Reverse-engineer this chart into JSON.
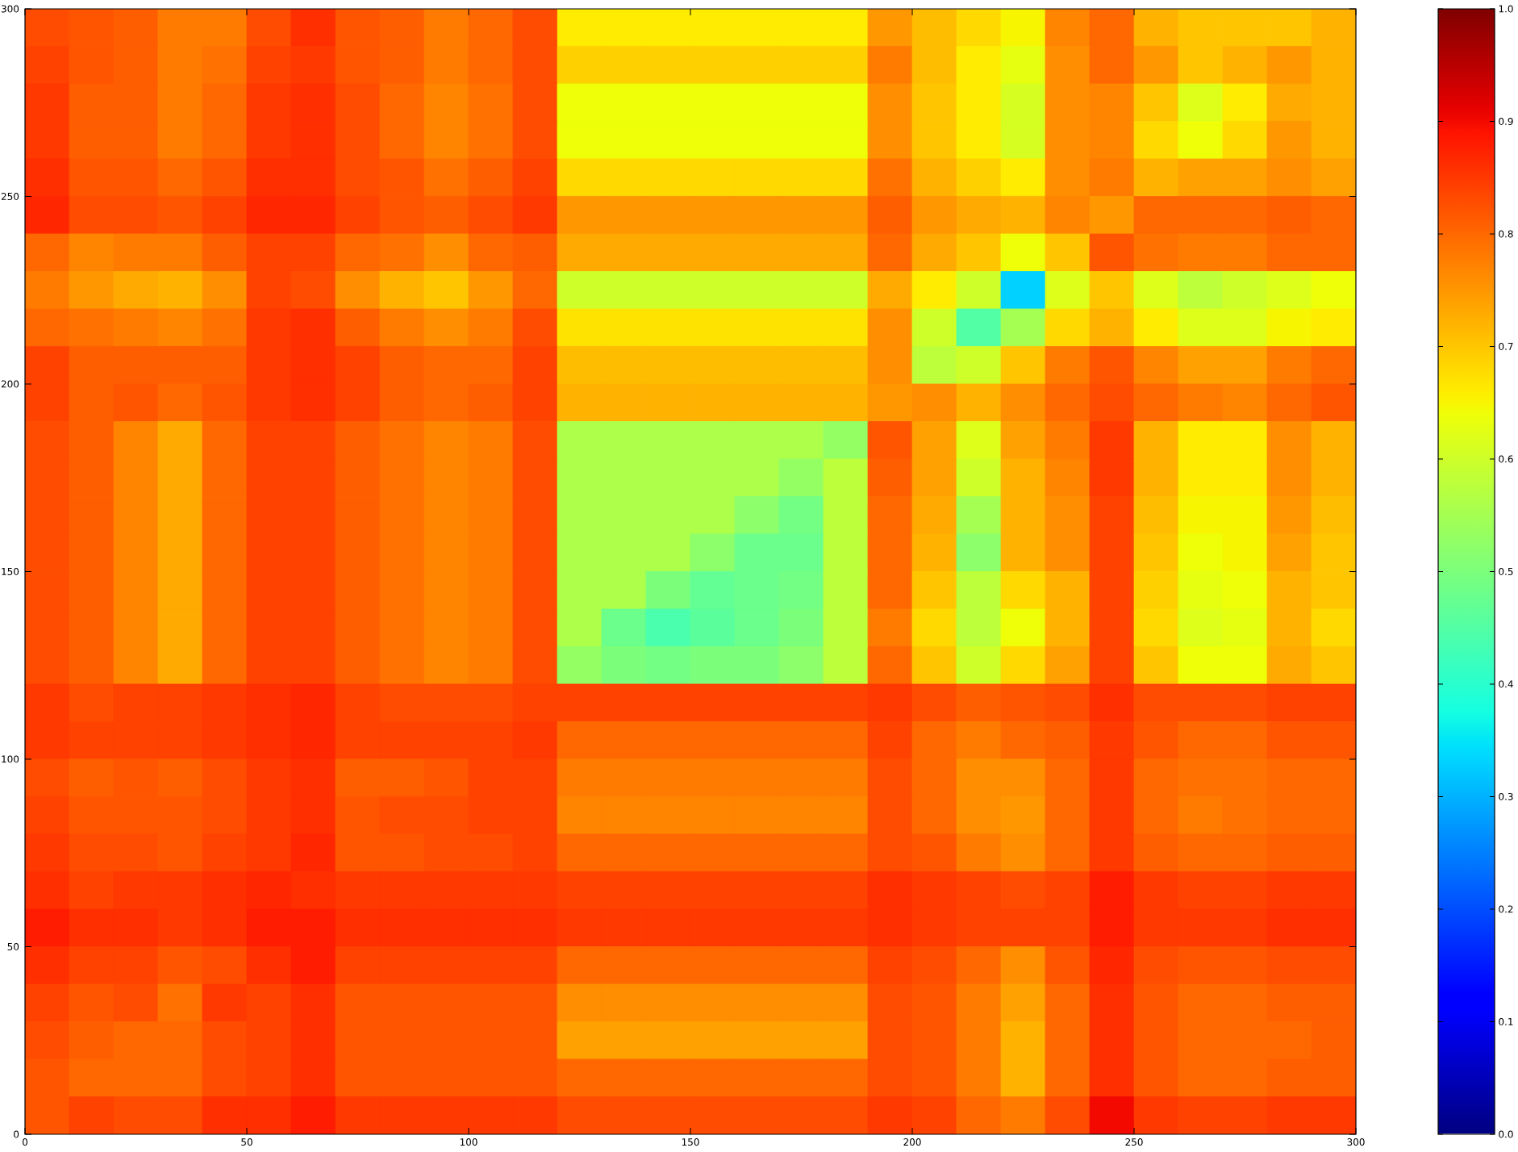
{
  "chart_data": {
    "type": "heatmap",
    "x": [
      5,
      15,
      25,
      35,
      45,
      55,
      65,
      75,
      85,
      95,
      105,
      115,
      125,
      135,
      145,
      155,
      165,
      175,
      185,
      195,
      205,
      215,
      225,
      235,
      245,
      255,
      265,
      275,
      285,
      295
    ],
    "y": [
      295,
      285,
      275,
      265,
      255,
      245,
      235,
      225,
      215,
      205,
      195,
      185,
      175,
      165,
      155,
      145,
      135,
      125,
      115,
      105,
      95,
      85,
      75,
      65,
      55,
      45,
      35,
      25,
      15,
      5
    ],
    "cells": [
      [
        0.83,
        0.82,
        0.81,
        0.78,
        0.78,
        0.83,
        0.86,
        0.82,
        0.81,
        0.78,
        0.8,
        0.83,
        0.66,
        0.66,
        0.66,
        0.66,
        0.66,
        0.66,
        0.66,
        0.75,
        0.71,
        0.68,
        0.65,
        0.77,
        0.8,
        0.72,
        0.7,
        0.7,
        0.7,
        0.72
      ],
      [
        0.84,
        0.82,
        0.81,
        0.78,
        0.79,
        0.84,
        0.85,
        0.82,
        0.81,
        0.78,
        0.8,
        0.83,
        0.69,
        0.69,
        0.69,
        0.69,
        0.69,
        0.69,
        0.69,
        0.78,
        0.71,
        0.66,
        0.63,
        0.76,
        0.8,
        0.75,
        0.7,
        0.72,
        0.75,
        0.72
      ],
      [
        0.85,
        0.81,
        0.81,
        0.78,
        0.8,
        0.85,
        0.86,
        0.83,
        0.8,
        0.77,
        0.79,
        0.83,
        0.64,
        0.64,
        0.64,
        0.64,
        0.64,
        0.64,
        0.64,
        0.76,
        0.7,
        0.66,
        0.61,
        0.76,
        0.77,
        0.7,
        0.62,
        0.66,
        0.73,
        0.72
      ],
      [
        0.85,
        0.81,
        0.81,
        0.78,
        0.8,
        0.85,
        0.86,
        0.83,
        0.8,
        0.77,
        0.79,
        0.83,
        0.64,
        0.64,
        0.64,
        0.64,
        0.64,
        0.64,
        0.64,
        0.76,
        0.7,
        0.66,
        0.61,
        0.76,
        0.77,
        0.68,
        0.64,
        0.68,
        0.75,
        0.72
      ],
      [
        0.86,
        0.82,
        0.82,
        0.8,
        0.82,
        0.86,
        0.86,
        0.83,
        0.82,
        0.79,
        0.81,
        0.84,
        0.68,
        0.68,
        0.68,
        0.68,
        0.68,
        0.68,
        0.68,
        0.79,
        0.72,
        0.69,
        0.66,
        0.76,
        0.78,
        0.72,
        0.74,
        0.74,
        0.76,
        0.74
      ],
      [
        0.87,
        0.83,
        0.83,
        0.82,
        0.84,
        0.87,
        0.87,
        0.84,
        0.82,
        0.81,
        0.83,
        0.85,
        0.75,
        0.75,
        0.75,
        0.75,
        0.75,
        0.75,
        0.75,
        0.81,
        0.75,
        0.73,
        0.72,
        0.77,
        0.75,
        0.8,
        0.8,
        0.8,
        0.81,
        0.8
      ],
      [
        0.8,
        0.77,
        0.78,
        0.78,
        0.81,
        0.84,
        0.84,
        0.8,
        0.79,
        0.76,
        0.8,
        0.81,
        0.73,
        0.73,
        0.73,
        0.73,
        0.73,
        0.73,
        0.73,
        0.8,
        0.73,
        0.7,
        0.64,
        0.7,
        0.82,
        0.79,
        0.78,
        0.78,
        0.8,
        0.8
      ],
      [
        0.78,
        0.75,
        0.73,
        0.72,
        0.76,
        0.84,
        0.83,
        0.76,
        0.72,
        0.7,
        0.75,
        0.8,
        0.6,
        0.6,
        0.6,
        0.6,
        0.6,
        0.6,
        0.6,
        0.73,
        0.66,
        0.6,
        0.33,
        0.62,
        0.7,
        0.62,
        0.58,
        0.6,
        0.62,
        0.64
      ],
      [
        0.8,
        0.79,
        0.78,
        0.77,
        0.79,
        0.85,
        0.86,
        0.81,
        0.78,
        0.76,
        0.78,
        0.83,
        0.67,
        0.67,
        0.67,
        0.67,
        0.67,
        0.67,
        0.67,
        0.76,
        0.6,
        0.45,
        0.55,
        0.68,
        0.72,
        0.66,
        0.62,
        0.62,
        0.65,
        0.66
      ],
      [
        0.84,
        0.81,
        0.81,
        0.81,
        0.81,
        0.85,
        0.86,
        0.84,
        0.81,
        0.8,
        0.8,
        0.84,
        0.71,
        0.71,
        0.71,
        0.71,
        0.71,
        0.71,
        0.71,
        0.76,
        0.58,
        0.6,
        0.7,
        0.78,
        0.82,
        0.77,
        0.74,
        0.74,
        0.78,
        0.8
      ],
      [
        0.84,
        0.81,
        0.82,
        0.8,
        0.82,
        0.85,
        0.86,
        0.84,
        0.81,
        0.8,
        0.81,
        0.84,
        0.72,
        0.72,
        0.72,
        0.72,
        0.72,
        0.72,
        0.72,
        0.75,
        0.76,
        0.72,
        0.76,
        0.8,
        0.83,
        0.8,
        0.78,
        0.77,
        0.8,
        0.82
      ],
      [
        0.83,
        0.81,
        0.77,
        0.73,
        0.8,
        0.84,
        0.84,
        0.81,
        0.79,
        0.77,
        0.78,
        0.83,
        0.56,
        0.56,
        0.56,
        0.56,
        0.56,
        0.56,
        0.53,
        0.82,
        0.74,
        0.62,
        0.74,
        0.78,
        0.85,
        0.72,
        0.66,
        0.66,
        0.76,
        0.72
      ],
      [
        0.83,
        0.81,
        0.77,
        0.73,
        0.8,
        0.84,
        0.84,
        0.81,
        0.79,
        0.77,
        0.78,
        0.83,
        0.56,
        0.56,
        0.56,
        0.56,
        0.56,
        0.53,
        0.58,
        0.81,
        0.74,
        0.6,
        0.72,
        0.77,
        0.85,
        0.72,
        0.66,
        0.66,
        0.76,
        0.72
      ],
      [
        0.83,
        0.81,
        0.77,
        0.73,
        0.8,
        0.84,
        0.84,
        0.81,
        0.79,
        0.77,
        0.78,
        0.83,
        0.56,
        0.56,
        0.56,
        0.56,
        0.52,
        0.49,
        0.58,
        0.8,
        0.73,
        0.55,
        0.72,
        0.76,
        0.84,
        0.71,
        0.65,
        0.65,
        0.75,
        0.71
      ],
      [
        0.83,
        0.81,
        0.77,
        0.73,
        0.8,
        0.84,
        0.84,
        0.81,
        0.79,
        0.77,
        0.78,
        0.83,
        0.56,
        0.56,
        0.56,
        0.52,
        0.48,
        0.48,
        0.58,
        0.8,
        0.72,
        0.52,
        0.72,
        0.76,
        0.84,
        0.7,
        0.64,
        0.65,
        0.74,
        0.7
      ],
      [
        0.83,
        0.81,
        0.77,
        0.73,
        0.8,
        0.84,
        0.84,
        0.81,
        0.79,
        0.77,
        0.78,
        0.83,
        0.56,
        0.56,
        0.5,
        0.47,
        0.48,
        0.49,
        0.58,
        0.8,
        0.7,
        0.58,
        0.68,
        0.72,
        0.84,
        0.69,
        0.63,
        0.64,
        0.72,
        0.7
      ],
      [
        0.83,
        0.81,
        0.77,
        0.73,
        0.8,
        0.84,
        0.84,
        0.81,
        0.79,
        0.77,
        0.78,
        0.83,
        0.56,
        0.48,
        0.44,
        0.46,
        0.48,
        0.5,
        0.58,
        0.78,
        0.68,
        0.58,
        0.64,
        0.72,
        0.84,
        0.68,
        0.62,
        0.63,
        0.72,
        0.68
      ],
      [
        0.83,
        0.81,
        0.77,
        0.73,
        0.8,
        0.84,
        0.84,
        0.81,
        0.79,
        0.77,
        0.78,
        0.83,
        0.53,
        0.5,
        0.49,
        0.5,
        0.5,
        0.52,
        0.58,
        0.8,
        0.7,
        0.6,
        0.68,
        0.74,
        0.84,
        0.7,
        0.64,
        0.64,
        0.73,
        0.7
      ],
      [
        0.85,
        0.83,
        0.84,
        0.84,
        0.85,
        0.86,
        0.87,
        0.84,
        0.83,
        0.83,
        0.83,
        0.84,
        0.84,
        0.84,
        0.84,
        0.84,
        0.84,
        0.84,
        0.84,
        0.85,
        0.83,
        0.81,
        0.82,
        0.83,
        0.86,
        0.83,
        0.83,
        0.83,
        0.84,
        0.84
      ],
      [
        0.85,
        0.84,
        0.84,
        0.84,
        0.85,
        0.86,
        0.87,
        0.84,
        0.84,
        0.84,
        0.84,
        0.85,
        0.8,
        0.8,
        0.8,
        0.8,
        0.8,
        0.8,
        0.8,
        0.84,
        0.8,
        0.78,
        0.8,
        0.81,
        0.85,
        0.82,
        0.8,
        0.8,
        0.82,
        0.82
      ],
      [
        0.83,
        0.81,
        0.82,
        0.81,
        0.83,
        0.85,
        0.86,
        0.81,
        0.81,
        0.82,
        0.84,
        0.84,
        0.78,
        0.78,
        0.78,
        0.78,
        0.78,
        0.78,
        0.78,
        0.83,
        0.8,
        0.76,
        0.76,
        0.8,
        0.85,
        0.8,
        0.79,
        0.79,
        0.8,
        0.8
      ],
      [
        0.84,
        0.82,
        0.82,
        0.82,
        0.83,
        0.85,
        0.86,
        0.82,
        0.83,
        0.83,
        0.84,
        0.84,
        0.77,
        0.77,
        0.77,
        0.77,
        0.77,
        0.77,
        0.77,
        0.83,
        0.8,
        0.76,
        0.75,
        0.8,
        0.85,
        0.8,
        0.78,
        0.79,
        0.8,
        0.8
      ],
      [
        0.85,
        0.83,
        0.83,
        0.82,
        0.84,
        0.85,
        0.87,
        0.82,
        0.82,
        0.83,
        0.83,
        0.84,
        0.8,
        0.8,
        0.8,
        0.8,
        0.8,
        0.8,
        0.8,
        0.83,
        0.82,
        0.78,
        0.76,
        0.8,
        0.85,
        0.81,
        0.8,
        0.8,
        0.81,
        0.81
      ],
      [
        0.86,
        0.84,
        0.85,
        0.85,
        0.86,
        0.87,
        0.86,
        0.85,
        0.85,
        0.85,
        0.85,
        0.85,
        0.84,
        0.84,
        0.84,
        0.84,
        0.84,
        0.84,
        0.84,
        0.86,
        0.85,
        0.84,
        0.83,
        0.84,
        0.88,
        0.85,
        0.84,
        0.84,
        0.85,
        0.85
      ],
      [
        0.88,
        0.86,
        0.86,
        0.85,
        0.86,
        0.88,
        0.88,
        0.86,
        0.86,
        0.86,
        0.86,
        0.86,
        0.85,
        0.85,
        0.85,
        0.85,
        0.85,
        0.85,
        0.85,
        0.86,
        0.85,
        0.84,
        0.84,
        0.84,
        0.88,
        0.85,
        0.85,
        0.85,
        0.86,
        0.86
      ],
      [
        0.86,
        0.84,
        0.84,
        0.82,
        0.83,
        0.86,
        0.88,
        0.84,
        0.84,
        0.84,
        0.84,
        0.84,
        0.8,
        0.8,
        0.8,
        0.8,
        0.8,
        0.8,
        0.8,
        0.84,
        0.83,
        0.8,
        0.76,
        0.82,
        0.87,
        0.83,
        0.82,
        0.82,
        0.83,
        0.83
      ],
      [
        0.84,
        0.82,
        0.83,
        0.79,
        0.85,
        0.84,
        0.86,
        0.82,
        0.82,
        0.82,
        0.82,
        0.82,
        0.76,
        0.76,
        0.76,
        0.76,
        0.76,
        0.76,
        0.76,
        0.83,
        0.82,
        0.78,
        0.74,
        0.8,
        0.86,
        0.82,
        0.8,
        0.8,
        0.81,
        0.81
      ],
      [
        0.83,
        0.81,
        0.8,
        0.8,
        0.83,
        0.84,
        0.86,
        0.82,
        0.82,
        0.82,
        0.82,
        0.82,
        0.74,
        0.74,
        0.74,
        0.74,
        0.74,
        0.74,
        0.74,
        0.83,
        0.82,
        0.78,
        0.72,
        0.8,
        0.86,
        0.82,
        0.8,
        0.8,
        0.8,
        0.81
      ],
      [
        0.82,
        0.8,
        0.8,
        0.8,
        0.83,
        0.84,
        0.86,
        0.82,
        0.82,
        0.82,
        0.82,
        0.82,
        0.8,
        0.8,
        0.8,
        0.8,
        0.8,
        0.8,
        0.8,
        0.83,
        0.82,
        0.78,
        0.72,
        0.8,
        0.86,
        0.82,
        0.8,
        0.8,
        0.81,
        0.81
      ],
      [
        0.82,
        0.84,
        0.83,
        0.83,
        0.86,
        0.86,
        0.88,
        0.85,
        0.85,
        0.85,
        0.85,
        0.85,
        0.83,
        0.83,
        0.83,
        0.83,
        0.83,
        0.83,
        0.83,
        0.85,
        0.84,
        0.8,
        0.78,
        0.83,
        0.9,
        0.85,
        0.84,
        0.84,
        0.85,
        0.85
      ]
    ],
    "xlim": [
      0,
      300
    ],
    "ylim": [
      0,
      300
    ],
    "xticks": [
      0,
      50,
      100,
      150,
      200,
      250,
      300
    ],
    "yticks": [
      0,
      50,
      100,
      150,
      200,
      250,
      300
    ],
    "clim": [
      0,
      1
    ],
    "cticks": [
      {
        "value": 0,
        "label": "0.0"
      },
      {
        "value": 0.1,
        "label": "0.1"
      },
      {
        "value": 0.2,
        "label": "0.2"
      },
      {
        "value": 0.3,
        "label": "0.3"
      },
      {
        "value": 0.4,
        "label": "0.4"
      },
      {
        "value": 0.5,
        "label": "0.5"
      },
      {
        "value": 0.6,
        "label": "0.6"
      },
      {
        "value": 0.7,
        "label": "0.7"
      },
      {
        "value": 0.8,
        "label": "0.8"
      },
      {
        "value": 0.9,
        "label": "0.9"
      },
      {
        "value": 1,
        "label": "1.0"
      }
    ]
  }
}
